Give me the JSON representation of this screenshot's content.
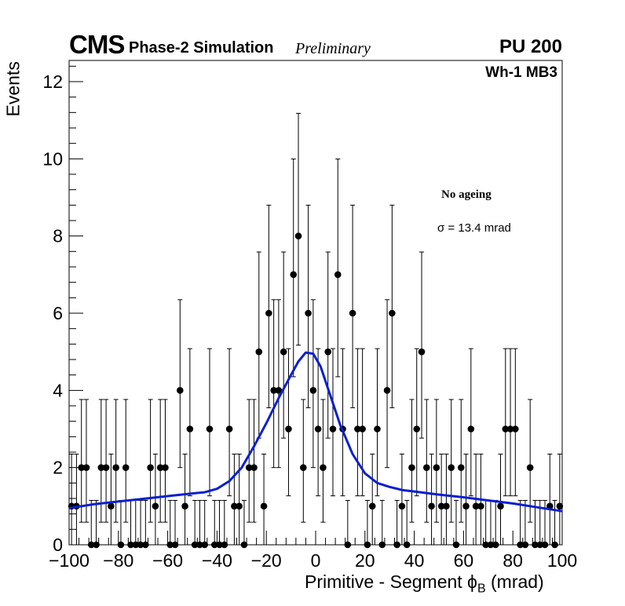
{
  "header": {
    "experiment": "CMS",
    "subtitle": "Phase-2 Simulation",
    "status": "Preliminary",
    "pileup": "PU 200",
    "region": "Wh-1 MB3"
  },
  "annotations": {
    "condition": "No ageing",
    "sigma_symbol": "σ",
    "sigma_text": " = 13.4 mrad"
  },
  "axes": {
    "xlabel_main": "Primitive - Segment ϕ",
    "xlabel_sub": "B",
    "xlabel_unit": " (mrad)",
    "ylabel": "Events"
  },
  "colors": {
    "fit": "#0a1fd0",
    "points": "#000000"
  },
  "chart_data": {
    "type": "scatter",
    "title": "CMS Phase-2 Simulation Preliminary, PU 200, Wh-1 MB3",
    "xlabel": "Primitive - Segment ϕB (mrad)",
    "ylabel": "Events",
    "xlim": [
      -100,
      100
    ],
    "ylim": [
      0,
      12.6
    ],
    "xticks": [
      -100,
      -80,
      -60,
      -40,
      -20,
      0,
      20,
      40,
      60,
      80,
      100
    ],
    "yticks": [
      0,
      2,
      4,
      6,
      8,
      10,
      12
    ],
    "x": [
      -99,
      -97,
      -95,
      -93,
      -91,
      -89,
      -87,
      -85,
      -83,
      -81,
      -79,
      -77,
      -75,
      -73,
      -71,
      -69,
      -67,
      -65,
      -63,
      -61,
      -59,
      -57,
      -55,
      -53,
      -51,
      -49,
      -47,
      -45,
      -43,
      -41,
      -39,
      -37,
      -35,
      -33,
      -31,
      -29,
      -27,
      -25,
      -23,
      -21,
      -19,
      -17,
      -15,
      -13,
      -11,
      -9,
      -7,
      -5,
      -3,
      -1,
      1,
      3,
      5,
      7,
      9,
      11,
      13,
      15,
      17,
      19,
      21,
      23,
      25,
      27,
      29,
      31,
      33,
      35,
      37,
      39,
      41,
      43,
      45,
      47,
      49,
      51,
      53,
      55,
      57,
      59,
      61,
      63,
      65,
      67,
      69,
      71,
      73,
      75,
      77,
      79,
      81,
      83,
      85,
      87,
      89,
      91,
      93,
      95,
      97,
      99
    ],
    "series": [
      {
        "name": "Simulation",
        "values": [
          1,
          1,
          2,
          2,
          0,
          0,
          2,
          2,
          1,
          2,
          0,
          2,
          0,
          0,
          0,
          0,
          2,
          1,
          2,
          2,
          0,
          0,
          4,
          1,
          3,
          0,
          0,
          0,
          3,
          0,
          0,
          0,
          3,
          1,
          1,
          0,
          2,
          2,
          5,
          1,
          6,
          4,
          4,
          5,
          3,
          7,
          8,
          2,
          6,
          4,
          3,
          2,
          5,
          3,
          7,
          3,
          0,
          6,
          3,
          3,
          0,
          1,
          3,
          0,
          4,
          6,
          0,
          1,
          0,
          2,
          3,
          5,
          2,
          1,
          2,
          1,
          1,
          2,
          0,
          2,
          1,
          3,
          1,
          1,
          0,
          0,
          0,
          1,
          3,
          3,
          3,
          0,
          0,
          2,
          0,
          0,
          0,
          1,
          0,
          1
        ]
      },
      {
        "name": "Fit",
        "x": [
          -100,
          -90,
          -80,
          -70,
          -60,
          -50,
          -45,
          -40,
          -35,
          -30,
          -25,
          -20,
          -15,
          -10,
          -7,
          -4,
          -1,
          2,
          5,
          10,
          15,
          20,
          25,
          30,
          35,
          40,
          50,
          60,
          70,
          80,
          90,
          100
        ],
        "values": [
          0.95,
          1.05,
          1.12,
          1.19,
          1.26,
          1.33,
          1.36,
          1.45,
          1.65,
          2.0,
          2.55,
          3.15,
          3.8,
          4.4,
          4.75,
          4.98,
          4.95,
          4.62,
          4.05,
          3.1,
          2.35,
          1.85,
          1.6,
          1.5,
          1.42,
          1.38,
          1.3,
          1.23,
          1.15,
          1.07,
          0.97,
          0.87
        ]
      }
    ],
    "fit_sigma": 13.4,
    "fit_sigma_unit": "mrad"
  }
}
